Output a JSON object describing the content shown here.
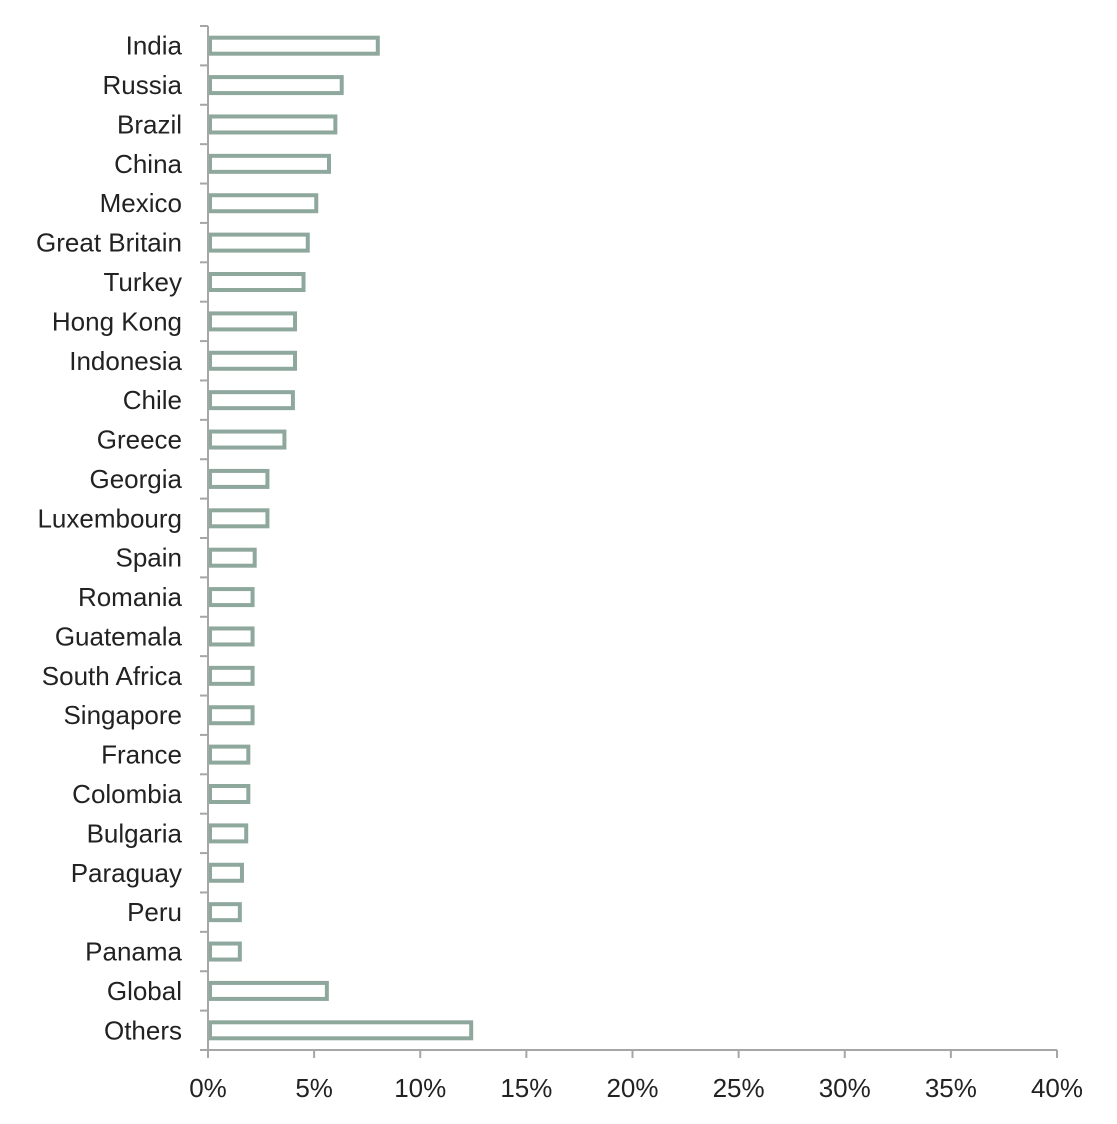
{
  "chart_data": {
    "type": "bar",
    "orientation": "horizontal",
    "title": "",
    "xlabel": "",
    "ylabel": "",
    "categories": [
      "India",
      "Russia",
      "Brazil",
      "China",
      "Mexico",
      "Great Britain",
      "Turkey",
      "Hong Kong",
      "Indonesia",
      "Chile",
      "Greece",
      "Georgia",
      "Luxembourg",
      "Spain",
      "Romania",
      "Guatemala",
      "South Africa",
      "Singapore",
      "France",
      "Colombia",
      "Bulgaria",
      "Paraguay",
      "Peru",
      "Panama",
      "Global",
      "Others"
    ],
    "values": [
      8.0,
      6.3,
      6.0,
      5.7,
      5.1,
      4.7,
      4.5,
      4.1,
      4.1,
      4.0,
      3.6,
      2.8,
      2.8,
      2.2,
      2.1,
      2.1,
      2.1,
      2.1,
      1.9,
      1.9,
      1.8,
      1.6,
      1.5,
      1.5,
      5.6,
      12.4
    ],
    "xlim": [
      0,
      40
    ],
    "xticks": [
      0,
      5,
      10,
      15,
      20,
      25,
      30,
      35,
      40
    ],
    "tick_suffix": "%",
    "grid": false,
    "bar_color": "#8fa89d",
    "axis_color": "#a6a6a6"
  }
}
